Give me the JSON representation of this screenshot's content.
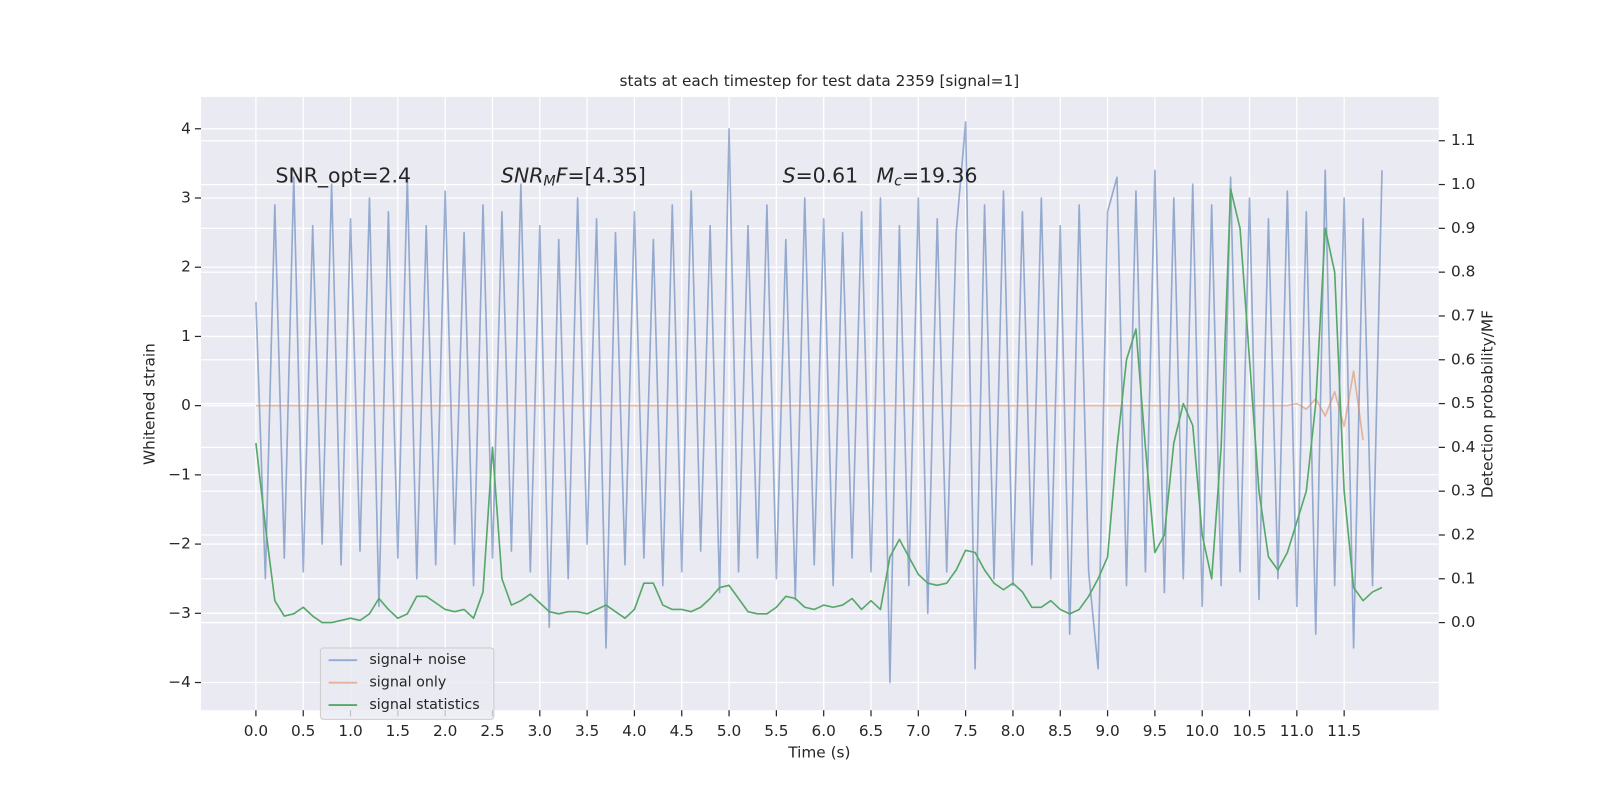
{
  "chart_data": {
    "type": "line",
    "title": "stats at each timestep for test data 2359 [signal=1]",
    "x_label": "Time (s)",
    "y_label": "Whitened strain",
    "y2_label": "Detection probability/MF",
    "x": [
      0,
      0.1,
      0.2,
      0.3,
      0.4,
      0.5,
      0.6,
      0.7,
      0.8,
      0.9,
      1,
      1.1,
      1.2,
      1.3,
      1.4,
      1.5,
      1.6,
      1.7,
      1.8,
      1.9,
      2,
      2.1,
      2.2,
      2.3,
      2.4,
      2.5,
      2.6,
      2.7,
      2.8,
      2.9,
      3,
      3.1,
      3.2,
      3.3,
      3.4,
      3.5,
      3.6,
      3.7,
      3.8,
      3.9,
      4,
      4.1,
      4.2,
      4.3,
      4.4,
      4.5,
      4.6,
      4.7,
      4.8,
      4.9,
      5,
      5.1,
      5.2,
      5.3,
      5.4,
      5.5,
      5.6,
      5.7,
      5.8,
      5.9,
      6,
      6.1,
      6.2,
      6.3,
      6.4,
      6.5,
      6.6,
      6.7,
      6.8,
      6.9,
      7,
      7.1,
      7.2,
      7.3,
      7.4,
      7.5,
      7.6,
      7.7,
      7.8,
      7.9,
      8,
      8.1,
      8.2,
      8.3,
      8.4,
      8.5,
      8.6,
      8.7,
      8.8,
      8.9,
      9,
      9.1,
      9.2,
      9.3,
      9.4,
      9.5,
      9.6,
      9.7,
      9.8,
      9.9,
      10,
      10.1,
      10.2,
      10.3,
      10.4,
      10.5,
      10.6,
      10.7,
      10.8,
      10.9,
      11,
      11.1,
      11.2,
      11.3,
      11.4,
      11.5,
      11.6,
      11.7,
      11.8,
      11.9
    ],
    "series": [
      {
        "name": "signal+ noise",
        "color": "#4c72b0",
        "alpha": 0.55,
        "axis": "y",
        "values": [
          1.5,
          -2.5,
          2.9,
          -2.2,
          3.3,
          -2.4,
          2.6,
          -2.0,
          3.2,
          -2.3,
          2.7,
          -2.1,
          3.0,
          -2.9,
          2.8,
          -2.2,
          3.3,
          -2.5,
          2.6,
          -2.3,
          3.1,
          -2.0,
          2.5,
          -2.6,
          2.9,
          -2.2,
          2.8,
          -2.1,
          3.2,
          -2.4,
          2.6,
          -3.2,
          2.4,
          -2.5,
          3.0,
          -2.0,
          2.7,
          -3.5,
          2.5,
          -2.3,
          2.8,
          -2.2,
          2.4,
          -2.6,
          2.9,
          -2.4,
          3.1,
          -2.1,
          2.6,
          -2.7,
          4.0,
          -2.4,
          2.6,
          -2.2,
          2.9,
          -2.5,
          2.4,
          -2.8,
          3.0,
          -2.3,
          2.7,
          -2.6,
          2.5,
          -2.2,
          2.8,
          -2.4,
          3.0,
          -4.0,
          2.6,
          -2.6,
          3.0,
          -3.0,
          2.7,
          -2.4,
          2.5,
          4.1,
          -3.8,
          2.9,
          -2.5,
          3.1,
          -2.6,
          2.8,
          -2.3,
          3.0,
          -2.5,
          2.6,
          -3.3,
          2.9,
          -2.4,
          -3.8,
          2.8,
          3.3,
          -2.6,
          3.1,
          -2.4,
          3.4,
          -2.7,
          3.0,
          -2.5,
          3.2,
          -2.9,
          2.9,
          -2.6,
          3.3,
          -2.4,
          3.0,
          -2.8,
          2.7,
          -2.5,
          3.1,
          -2.9,
          2.8,
          -3.3,
          3.4,
          -2.6,
          3.0,
          -3.5,
          2.7,
          -2.6,
          3.4
        ]
      },
      {
        "name": "signal only",
        "color": "#dd8452",
        "alpha": 0.55,
        "axis": "y",
        "values": [
          0,
          0,
          0,
          0,
          0,
          0,
          0,
          0,
          0,
          0,
          0,
          0,
          0,
          0,
          0,
          0,
          0,
          0,
          0,
          0,
          0,
          0,
          0,
          0,
          0,
          0,
          0,
          0,
          0,
          0,
          0,
          0,
          0,
          0,
          0,
          0,
          0,
          0,
          0,
          0,
          0,
          0,
          0,
          0,
          0,
          0,
          0,
          0,
          0,
          0,
          0,
          0,
          0,
          0,
          0,
          0,
          0,
          0,
          0,
          0,
          0,
          0,
          0,
          0,
          0,
          0,
          0,
          0,
          0,
          0,
          0,
          0,
          0,
          0,
          0,
          0,
          0,
          0,
          0,
          0,
          0,
          0,
          0,
          0,
          0,
          0,
          0,
          0,
          0,
          0,
          0,
          0,
          0,
          0,
          0,
          0,
          0,
          0,
          0,
          0,
          0,
          0,
          0,
          0,
          0,
          0,
          0,
          0,
          0,
          0,
          0.03,
          -0.05,
          0.1,
          -0.15,
          0.2,
          -0.3,
          0.5,
          -0.5,
          null,
          null
        ]
      },
      {
        "name": "signal statistics",
        "color": "#55a868",
        "alpha": 1,
        "axis": "y2",
        "values": [
          0.41,
          0.22,
          0.05,
          0.015,
          0.02,
          0.035,
          0.015,
          0,
          0,
          0.005,
          0.01,
          0.005,
          0.02,
          0.055,
          0.03,
          0.01,
          0.02,
          0.06,
          0.06,
          0.045,
          0.03,
          0.025,
          0.03,
          0.01,
          0.07,
          0.4,
          0.1,
          0.04,
          0.05,
          0.065,
          0.045,
          0.025,
          0.02,
          0.025,
          0.025,
          0.02,
          0.03,
          0.04,
          0.025,
          0.01,
          0.03,
          0.09,
          0.09,
          0.04,
          0.03,
          0.03,
          0.025,
          0.035,
          0.055,
          0.08,
          0.085,
          0.055,
          0.025,
          0.02,
          0.02,
          0.035,
          0.06,
          0.055,
          0.035,
          0.03,
          0.04,
          0.035,
          0.04,
          0.055,
          0.03,
          0.05,
          0.03,
          0.15,
          0.19,
          0.15,
          0.11,
          0.09,
          0.085,
          0.09,
          0.12,
          0.165,
          0.16,
          0.12,
          0.09,
          0.075,
          0.09,
          0.07,
          0.035,
          0.035,
          0.05,
          0.03,
          0.02,
          0.03,
          0.06,
          0.1,
          0.15,
          0.4,
          0.6,
          0.67,
          0.4,
          0.16,
          0.2,
          0.41,
          0.5,
          0.45,
          0.2,
          0.1,
          0.4,
          0.99,
          0.9,
          0.6,
          0.3,
          0.15,
          0.12,
          0.16,
          0.23,
          0.3,
          0.5,
          0.9,
          0.8,
          0.3,
          0.08,
          0.05,
          0.07,
          0.08
        ]
      }
    ],
    "xlim": [
      -0.58,
      12.5
    ],
    "ylim": [
      -4.4,
      4.46
    ],
    "y2lim": [
      -0.2,
      1.2
    ],
    "xticks": [
      {
        "value": 0,
        "label": "0.0"
      },
      0.5,
      {
        "value": 1,
        "label": "1.0"
      },
      1.5,
      {
        "value": 2,
        "label": "2.0"
      },
      2.5,
      {
        "value": 3,
        "label": "3.0"
      },
      3.5,
      {
        "value": 4,
        "label": "4.0"
      },
      4.5,
      {
        "value": 5,
        "label": "5.0"
      },
      5.5,
      {
        "value": 6,
        "label": "6.0"
      },
      6.5,
      {
        "value": 7,
        "label": "7.0"
      },
      7.5,
      {
        "value": 8,
        "label": "8.0"
      },
      8.5,
      {
        "value": 9,
        "label": "9.0"
      },
      9.5,
      {
        "value": 10,
        "label": "10.0"
      },
      10.5,
      {
        "value": 11,
        "label": "11.0"
      },
      11.5
    ],
    "yticks": [
      {
        "value": -4,
        "label": "−4"
      },
      {
        "value": -3,
        "label": "−3"
      },
      {
        "value": -2,
        "label": "−2"
      },
      {
        "value": -1,
        "label": "−1"
      },
      0,
      1,
      2,
      3,
      4
    ],
    "y2ticks": [
      {
        "value": 0,
        "label": "0.0"
      },
      0.1,
      0.2,
      0.3,
      0.4,
      0.5,
      0.6,
      0.7,
      0.8,
      0.9,
      {
        "value": 1,
        "label": "1.0"
      },
      1.1
    ],
    "grid": true,
    "legend": "lower left",
    "annotations": [
      {
        "parts": [
          {
            "text": "SNR_opt=2.4"
          }
        ]
      },
      {
        "parts": [
          {
            "text": "SNR",
            "italic": true
          },
          {
            "text": "M",
            "italic": true,
            "sub": true
          },
          {
            "text": "F",
            "italic": true
          },
          {
            "text": "=[4.35]"
          }
        ]
      },
      {
        "parts": [
          {
            "text": "S",
            "italic": true
          },
          {
            "text": "=0.61"
          }
        ]
      },
      {
        "parts": [
          {
            "text": "M",
            "italic": true
          },
          {
            "text": "c",
            "italic": true,
            "sub": true
          },
          {
            "text": "=19.36"
          }
        ]
      }
    ]
  }
}
